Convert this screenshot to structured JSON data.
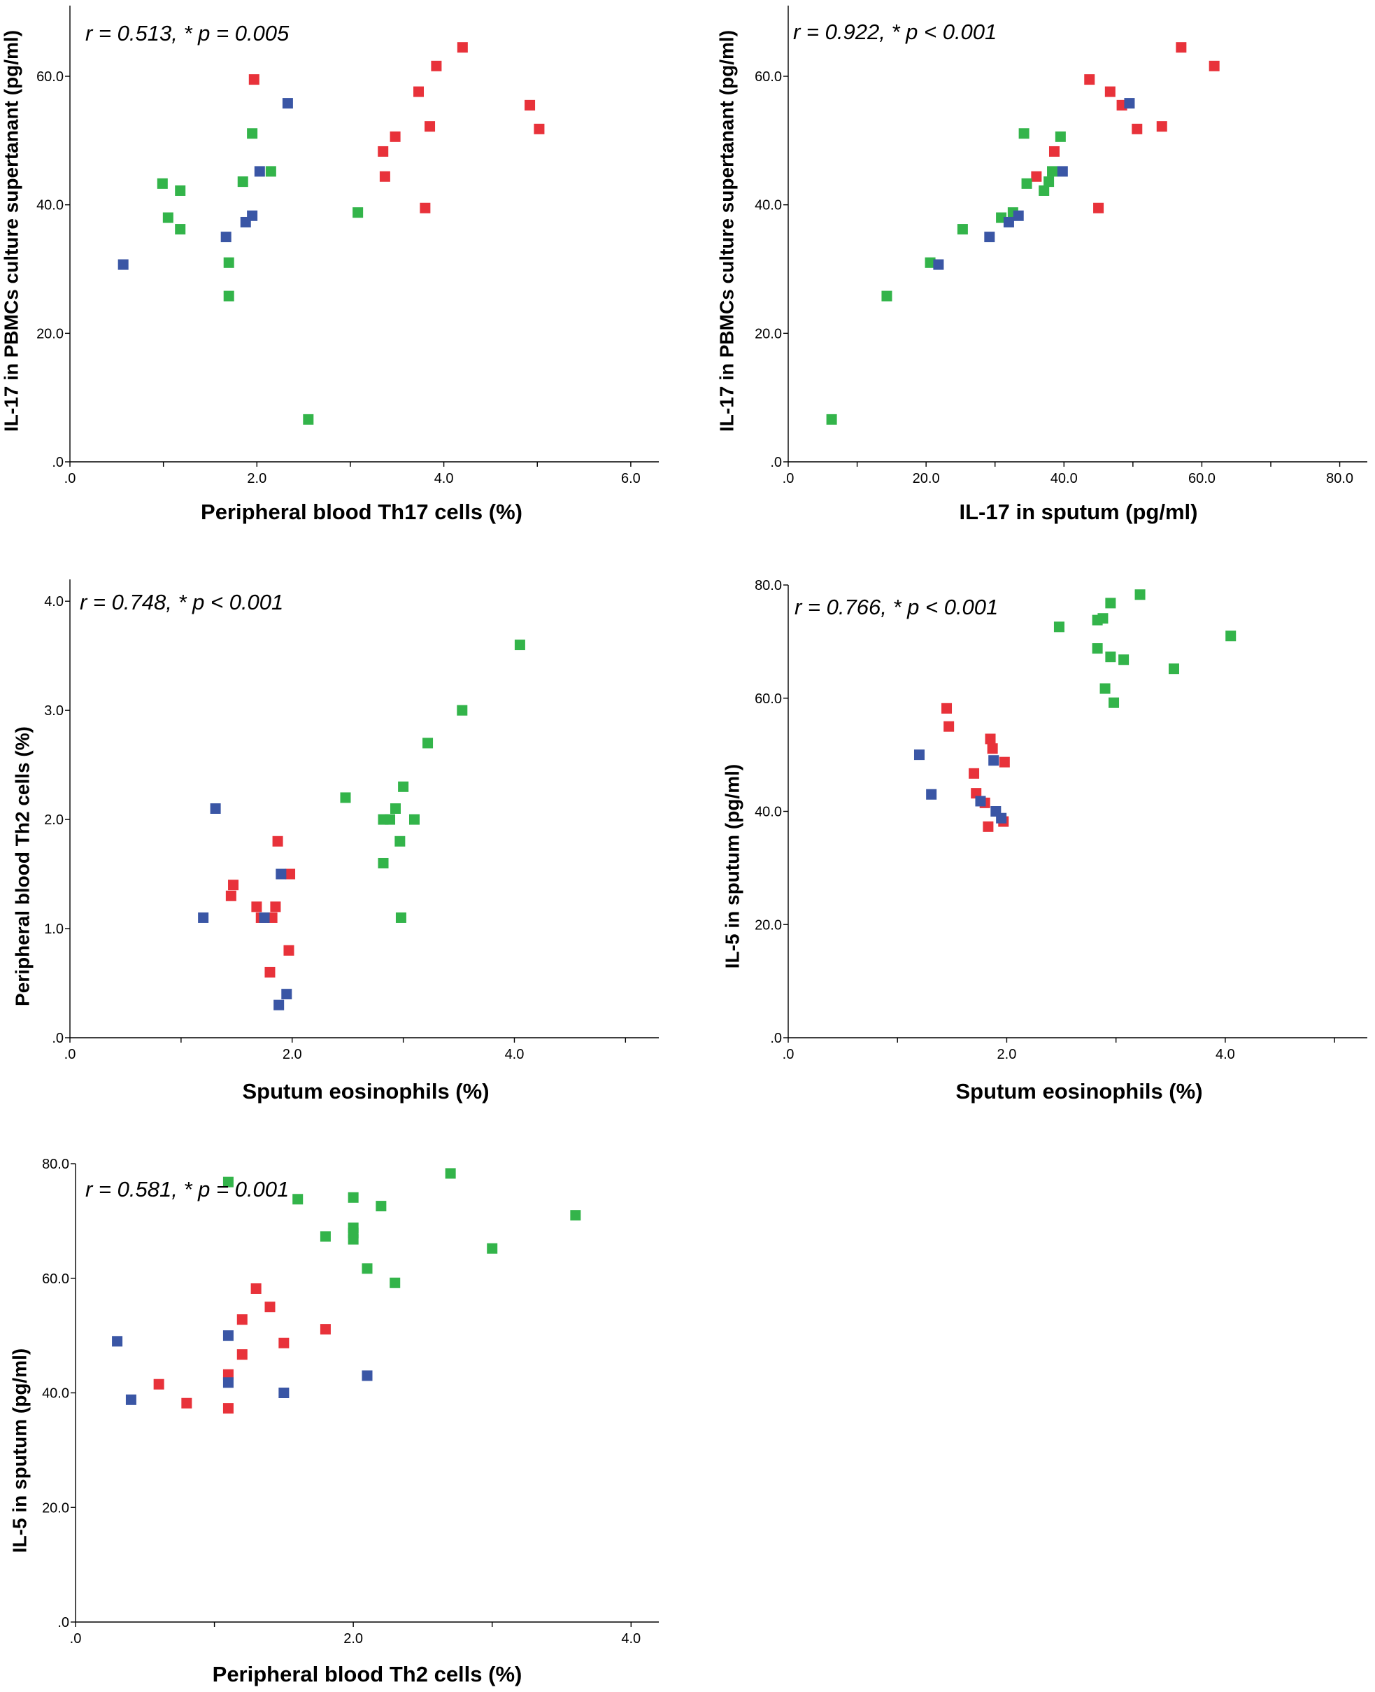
{
  "colors": {
    "red": "#e8323a",
    "green": "#33b44a",
    "blue": "#3a56a5"
  },
  "chart_data": [
    {
      "type": "scatter",
      "annotation": "r = 0.513, * p = 0.005",
      "xlabel": "Peripheral blood Th17 cells (%)",
      "ylabel": "IL-17 in PBMCs culture supertanant (pg/ml)",
      "xlim": [
        0,
        6.3
      ],
      "ylim": [
        0,
        71
      ],
      "xticks": [
        0,
        2,
        4,
        6
      ],
      "xtick_labels": [
        ".0",
        "2.0",
        "4.0",
        "6.0"
      ],
      "xminor": [
        1,
        3,
        5
      ],
      "yticks": [
        0,
        20,
        40,
        60
      ],
      "ytick_labels": [
        ".0",
        "20.0",
        "40.0",
        "60.0"
      ],
      "series": [
        {
          "name": "red",
          "color": "#e8323a",
          "points": [
            [
              1.97,
              59.5
            ],
            [
              3.35,
              48.3
            ],
            [
              3.37,
              44.4
            ],
            [
              3.48,
              50.6
            ],
            [
              3.73,
              57.6
            ],
            [
              3.8,
              39.5
            ],
            [
              3.85,
              52.2
            ],
            [
              3.92,
              61.6
            ],
            [
              4.2,
              64.5
            ],
            [
              4.92,
              55.5
            ],
            [
              5.02,
              51.8
            ]
          ]
        },
        {
          "name": "green",
          "color": "#33b44a",
          "points": [
            [
              0.99,
              43.3
            ],
            [
              1.05,
              38.0
            ],
            [
              1.18,
              42.2
            ],
            [
              1.18,
              36.2
            ],
            [
              1.7,
              31.0
            ],
            [
              1.7,
              25.8
            ],
            [
              1.85,
              43.6
            ],
            [
              1.95,
              51.1
            ],
            [
              2.15,
              45.2
            ],
            [
              2.55,
              6.6
            ],
            [
              3.08,
              38.8
            ]
          ]
        },
        {
          "name": "blue",
          "color": "#3a56a5",
          "points": [
            [
              0.57,
              30.7
            ],
            [
              1.67,
              35.0
            ],
            [
              1.88,
              37.3
            ],
            [
              1.95,
              38.3
            ],
            [
              2.03,
              45.2
            ],
            [
              2.33,
              55.8
            ]
          ]
        }
      ]
    },
    {
      "type": "scatter",
      "annotation": "r = 0.922, * p < 0.001",
      "xlabel": "IL-17 in sputum (pg/ml)",
      "ylabel": "IL-17 in PBMCs culture supertanant (pg/ml)",
      "xlim": [
        0,
        84
      ],
      "ylim": [
        0,
        71
      ],
      "xticks": [
        0,
        20,
        40,
        60,
        80
      ],
      "xtick_labels": [
        ".0",
        "20.0",
        "40.0",
        "60.0",
        "80.0"
      ],
      "xminor": [
        10,
        30,
        50,
        70
      ],
      "yticks": [
        0,
        20,
        40,
        60
      ],
      "ytick_labels": [
        ".0",
        "20.0",
        "40.0",
        "60.0"
      ],
      "series": [
        {
          "name": "red",
          "color": "#e8323a",
          "points": [
            [
              36.0,
              44.4
            ],
            [
              38.6,
              48.3
            ],
            [
              43.7,
              59.5
            ],
            [
              45.0,
              39.5
            ],
            [
              46.7,
              57.6
            ],
            [
              48.4,
              55.5
            ],
            [
              50.6,
              51.8
            ],
            [
              54.2,
              52.2
            ],
            [
              57.0,
              64.5
            ],
            [
              61.8,
              61.6
            ]
          ]
        },
        {
          "name": "green",
          "color": "#33b44a",
          "points": [
            [
              6.3,
              6.6
            ],
            [
              14.3,
              25.8
            ],
            [
              20.6,
              31.0
            ],
            [
              25.3,
              36.2
            ],
            [
              30.9,
              38.0
            ],
            [
              32.6,
              38.8
            ],
            [
              34.2,
              51.1
            ],
            [
              34.6,
              43.3
            ],
            [
              37.1,
              42.2
            ],
            [
              37.8,
              43.6
            ],
            [
              38.3,
              45.2
            ],
            [
              39.5,
              50.6
            ]
          ]
        },
        {
          "name": "blue",
          "color": "#3a56a5",
          "points": [
            [
              21.8,
              30.7
            ],
            [
              29.2,
              35.0
            ],
            [
              32.0,
              37.3
            ],
            [
              33.4,
              38.3
            ],
            [
              39.8,
              45.2
            ],
            [
              49.5,
              55.8
            ]
          ]
        }
      ]
    },
    {
      "type": "scatter",
      "annotation": "r = 0.748, * p < 0.001",
      "xlabel": "Sputum eosinophils (%)",
      "ylabel": "Peripheral blood Th2 cells (%)",
      "xlim": [
        0,
        5.3
      ],
      "ylim": [
        0,
        4.2
      ],
      "xticks": [
        0,
        2,
        4
      ],
      "xtick_labels": [
        ".0",
        "2.0",
        "4.0"
      ],
      "xminor": [
        1,
        3,
        5
      ],
      "yticks": [
        0,
        1,
        2,
        3,
        4
      ],
      "ytick_labels": [
        ".0",
        "1.0",
        "2.0",
        "3.0",
        "4.0"
      ],
      "series": [
        {
          "name": "red",
          "color": "#e8323a",
          "points": [
            [
              1.45,
              1.3
            ],
            [
              1.47,
              1.4
            ],
            [
              1.68,
              1.2
            ],
            [
              1.72,
              1.1
            ],
            [
              1.8,
              0.6
            ],
            [
              1.82,
              1.1
            ],
            [
              1.85,
              1.2
            ],
            [
              1.87,
              1.8
            ],
            [
              1.97,
              0.8
            ],
            [
              1.98,
              1.5
            ]
          ]
        },
        {
          "name": "green",
          "color": "#33b44a",
          "points": [
            [
              2.48,
              2.2
            ],
            [
              2.82,
              2.0
            ],
            [
              2.82,
              1.6
            ],
            [
              2.88,
              2.0
            ],
            [
              2.93,
              2.1
            ],
            [
              2.97,
              1.8
            ],
            [
              2.98,
              1.1
            ],
            [
              3.0,
              2.3
            ],
            [
              3.1,
              2.0
            ],
            [
              3.22,
              2.7
            ],
            [
              3.53,
              3.0
            ],
            [
              4.05,
              3.6
            ]
          ]
        },
        {
          "name": "blue",
          "color": "#3a56a5",
          "points": [
            [
              1.2,
              1.1
            ],
            [
              1.31,
              2.1
            ],
            [
              1.75,
              1.1
            ],
            [
              1.88,
              0.3
            ],
            [
              1.9,
              1.5
            ],
            [
              1.95,
              0.4
            ]
          ]
        }
      ]
    },
    {
      "type": "scatter",
      "annotation": "r = 0.766, * p < 0.001",
      "xlabel": "Sputum eosinophils (%)",
      "ylabel": "IL-5 in sputum (pg/ml)",
      "xlim": [
        0,
        5.3
      ],
      "ylim": [
        0,
        80
      ],
      "xticks": [
        0,
        2,
        4
      ],
      "xtick_labels": [
        ".0",
        "2.0",
        "4.0"
      ],
      "xminor": [
        1,
        3,
        5
      ],
      "yticks": [
        0,
        20,
        40,
        60,
        80
      ],
      "ytick_labels": [
        ".0",
        "20.0",
        "40.0",
        "60.0",
        "80.0"
      ],
      "series": [
        {
          "name": "red",
          "color": "#e8323a",
          "points": [
            [
              1.45,
              58.2
            ],
            [
              1.47,
              55.0
            ],
            [
              1.7,
              46.7
            ],
            [
              1.72,
              43.2
            ],
            [
              1.8,
              41.5
            ],
            [
              1.83,
              37.3
            ],
            [
              1.85,
              52.8
            ],
            [
              1.87,
              51.1
            ],
            [
              1.97,
              38.2
            ],
            [
              1.98,
              48.7
            ]
          ]
        },
        {
          "name": "green",
          "color": "#33b44a",
          "points": [
            [
              2.48,
              72.6
            ],
            [
              2.83,
              68.8
            ],
            [
              2.83,
              73.8
            ],
            [
              2.88,
              74.1
            ],
            [
              2.9,
              61.7
            ],
            [
              2.95,
              67.3
            ],
            [
              2.95,
              76.8
            ],
            [
              2.98,
              59.2
            ],
            [
              3.07,
              66.8
            ],
            [
              3.22,
              78.3
            ],
            [
              3.53,
              65.2
            ],
            [
              4.05,
              71.0
            ]
          ]
        },
        {
          "name": "blue",
          "color": "#3a56a5",
          "points": [
            [
              1.2,
              50.0
            ],
            [
              1.31,
              43.0
            ],
            [
              1.76,
              41.8
            ],
            [
              1.88,
              49.0
            ],
            [
              1.9,
              40.0
            ],
            [
              1.95,
              38.8
            ]
          ]
        }
      ]
    },
    {
      "type": "scatter",
      "annotation": "r = 0.581, * p = 0.001",
      "xlabel": "Peripheral blood Th2 cells (%)",
      "ylabel": "IL-5 in sputum (pg/ml)",
      "xlim": [
        0,
        4.2
      ],
      "ylim": [
        0,
        80
      ],
      "xticks": [
        0,
        2,
        4
      ],
      "xtick_labels": [
        ".0",
        "2.0",
        "4.0"
      ],
      "xminor": [
        1,
        3
      ],
      "yticks": [
        0,
        20,
        40,
        60,
        80
      ],
      "ytick_labels": [
        ".0",
        "20.0",
        "40.0",
        "60.0",
        "80.0"
      ],
      "series": [
        {
          "name": "red",
          "color": "#e8323a",
          "points": [
            [
              0.6,
              41.5
            ],
            [
              0.8,
              38.2
            ],
            [
              1.1,
              43.2
            ],
            [
              1.1,
              37.3
            ],
            [
              1.2,
              52.8
            ],
            [
              1.2,
              46.7
            ],
            [
              1.3,
              58.2
            ],
            [
              1.4,
              55.0
            ],
            [
              1.5,
              48.7
            ],
            [
              1.8,
              51.1
            ]
          ]
        },
        {
          "name": "green",
          "color": "#33b44a",
          "points": [
            [
              1.1,
              76.8
            ],
            [
              1.6,
              73.8
            ],
            [
              1.8,
              67.3
            ],
            [
              2.0,
              74.1
            ],
            [
              2.0,
              68.8
            ],
            [
              2.0,
              67.9
            ],
            [
              2.0,
              66.8
            ],
            [
              2.1,
              61.7
            ],
            [
              2.2,
              72.6
            ],
            [
              2.3,
              59.2
            ],
            [
              2.7,
              78.3
            ],
            [
              3.0,
              65.2
            ],
            [
              3.6,
              71.0
            ]
          ]
        },
        {
          "name": "blue",
          "color": "#3a56a5",
          "points": [
            [
              0.3,
              49.0
            ],
            [
              0.4,
              38.8
            ],
            [
              1.1,
              50.0
            ],
            [
              1.1,
              41.8
            ],
            [
              1.5,
              40.0
            ],
            [
              2.1,
              43.0
            ]
          ]
        }
      ]
    }
  ]
}
